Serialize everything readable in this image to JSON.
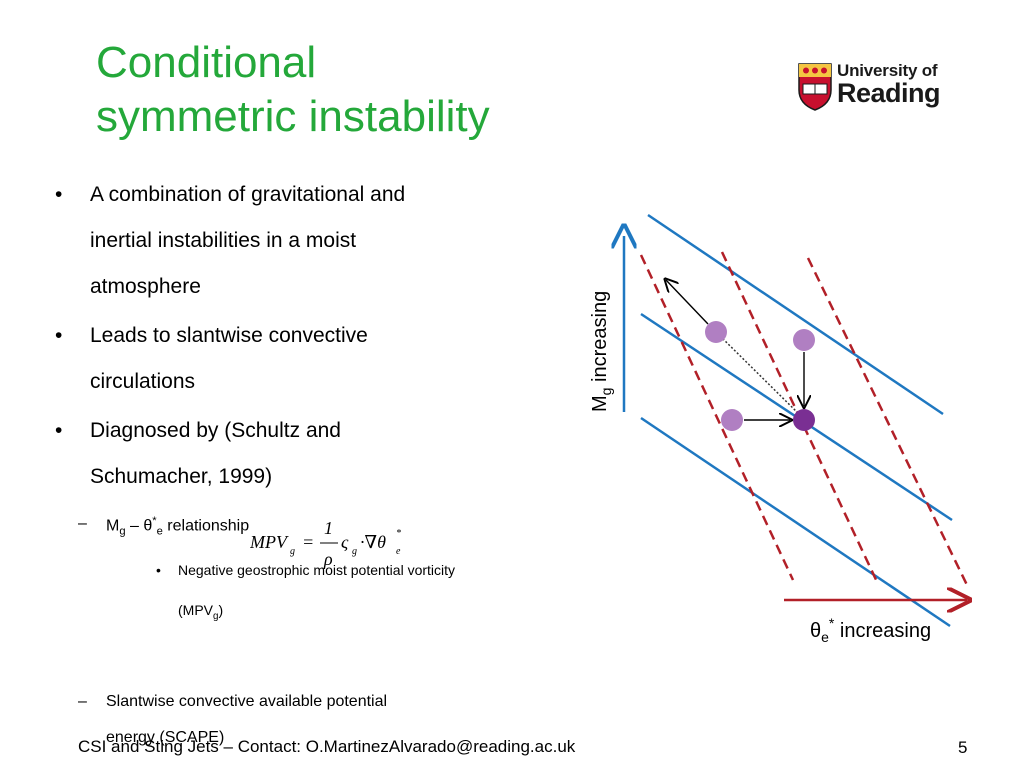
{
  "slide": {
    "title_line1": "Conditional",
    "title_line2": "symmetric instability",
    "logo_line1": "University of",
    "logo_line2": "Reading",
    "bullets": [
      {
        "text_line1": "A combination of gravitational and",
        "text_line2": "inertial instabilities in a moist",
        "text_line3": "atmosphere"
      },
      {
        "text_line1": "Leads to slantwise convective",
        "text_line2": "circulations"
      },
      {
        "text_line1": "Diagnosed by (Schultz and",
        "text_line2": "Schumacher, 1999)"
      }
    ],
    "sub_bullet1": {
      "m": "M",
      "g": "g",
      "dash": " – ",
      "theta": "θ",
      "star": "*",
      "e": "e",
      "rest": " relationship"
    },
    "formula": {
      "lhs": "MPV",
      "lhs_sub": "g",
      "eq": "=",
      "num": "1",
      "den": "ρ",
      "zeta": "ς",
      "zeta_sub": "g",
      "op": "·∇θ",
      "theta_sub": "e",
      "theta_sup": "*"
    },
    "sub_sub_bullet": {
      "line1": "Negative geostrophic moist potential vorticity",
      "line2_pre": "(MPV",
      "line2_sub": "g",
      "line2_post": ")"
    },
    "sub_bullet2": {
      "line1": "Slantwise convective available potential",
      "line2": "energy (SCAPE)"
    },
    "footer": "CSI and Sting Jets – Contact: O.MartinezAlvarado@reading.ac.uk",
    "page_number": "5"
  },
  "diagram": {
    "y_axis_label": "M",
    "y_axis_label_sub": "g",
    "y_axis_label_rest": " increasing",
    "x_axis_label_theta": "θ",
    "x_axis_label_sub": "e",
    "x_axis_label_sup": "*",
    "x_axis_label_rest": " increasing",
    "colors": {
      "blue": "#1f78c1",
      "red_dashed": "#b22028",
      "dot_light": "#b07fc2",
      "dot_dark": "#7a2f93",
      "title_green": "#24a83a",
      "logo_red": "#c8102e"
    }
  }
}
